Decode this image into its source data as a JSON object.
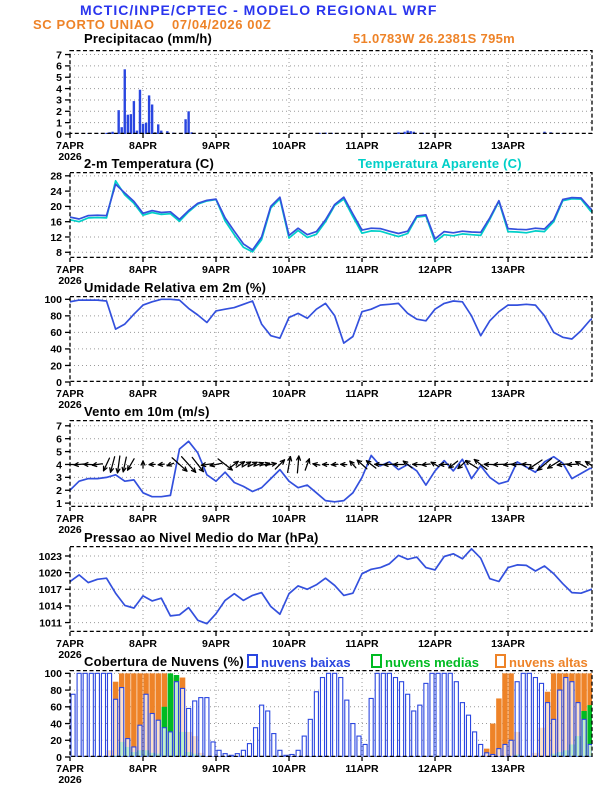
{
  "header": {
    "title": "MCTIC/INPE/CPTEC - MODELO REGIONAL WRF",
    "station": "SC PORTO UNIAO",
    "run": "07/04/2026 00Z",
    "location": "51.0783W 26.2381S 795m"
  },
  "colors": {
    "header_blue": "#2a35ee",
    "orange": "#ee8328",
    "line_blue": "#3350dd",
    "cyan": "#00cfc8",
    "green": "#00bb22",
    "bar_blue": "#2a46e0"
  },
  "x_axis": {
    "labels": [
      "7APR",
      "8APR",
      "9APR",
      "10APR",
      "11APR",
      "12APR",
      "13APR"
    ],
    "year": "2026",
    "hours_max": 171.6
  },
  "chart_data": [
    {
      "type": "bar",
      "title": "Precipitacao (mm/h)",
      "ylabel": "",
      "xlabel": "",
      "ylim": [
        0,
        7.4
      ],
      "yticks": [
        0,
        1,
        2,
        3,
        4,
        5,
        6,
        7
      ],
      "bars": [
        [
          6,
          0.05
        ],
        [
          9,
          0.06
        ],
        [
          12,
          0.1
        ],
        [
          13,
          0.15
        ],
        [
          14,
          0.2
        ],
        [
          16,
          2.1
        ],
        [
          17,
          0.6
        ],
        [
          18,
          5.7
        ],
        [
          19,
          1.7
        ],
        [
          20,
          1.75
        ],
        [
          21,
          2.9
        ],
        [
          22,
          0.3
        ],
        [
          23,
          3.9
        ],
        [
          24,
          0.9
        ],
        [
          25,
          1.0
        ],
        [
          26,
          3.4
        ],
        [
          27,
          2.6
        ],
        [
          28,
          0.15
        ],
        [
          29,
          0.85
        ],
        [
          30,
          0.3
        ],
        [
          32,
          0.25
        ],
        [
          34,
          0.12
        ],
        [
          38,
          1.3
        ],
        [
          39,
          2.0
        ],
        [
          40,
          0.15
        ],
        [
          82,
          0.1
        ],
        [
          84,
          0.12
        ],
        [
          86,
          0.1
        ],
        [
          108,
          0.15
        ],
        [
          110,
          0.2
        ],
        [
          111,
          0.3
        ],
        [
          112,
          0.25
        ],
        [
          113,
          0.2
        ],
        [
          116,
          0.1
        ],
        [
          120,
          0.08
        ],
        [
          156,
          0.2
        ],
        [
          158,
          0.15
        ],
        [
          162,
          0.06
        ]
      ]
    },
    {
      "type": "line",
      "title": "2-m Temperatura (C)",
      "ylim": [
        6.5,
        29
      ],
      "yticks": [
        8,
        12,
        16,
        20,
        24,
        28
      ],
      "interval_hours": 3,
      "series": [
        {
          "name": "2-m Temperatura (C)",
          "color": "blue",
          "values": [
            17.2,
            16.7,
            17.6,
            17.7,
            17.6,
            25.8,
            23.5,
            21.3,
            18.2,
            18.9,
            18.4,
            18.6,
            16.6,
            18.9,
            20.8,
            21.6,
            21.9,
            17.0,
            13.5,
            10.2,
            8.6,
            12.0,
            20.0,
            22.4,
            12.4,
            14.3,
            12.6,
            13.4,
            16.5,
            20.5,
            22.4,
            18.0,
            13.8,
            14.3,
            14.2,
            13.5,
            12.9,
            13.5,
            17.5,
            17.8,
            11.5,
            13.4,
            13.1,
            13.5,
            13.3,
            13.2,
            17.0,
            21.5,
            14.2,
            14.0,
            13.9,
            14.3,
            14.1,
            16.5,
            21.8,
            22.3,
            22.2,
            19.5,
            17.4
          ]
        },
        {
          "name": "Temperatura Aparente (C)",
          "color": "cyan",
          "values": [
            16.5,
            16.0,
            17.0,
            17.1,
            17.0,
            26.7,
            23.0,
            20.8,
            17.7,
            18.4,
            17.9,
            18.1,
            16.1,
            18.6,
            20.6,
            21.4,
            21.8,
            16.2,
            12.6,
            9.3,
            8.1,
            11.3,
            19.6,
            22.0,
            11.7,
            13.7,
            11.9,
            12.7,
            16.0,
            20.2,
            21.9,
            17.3,
            13.0,
            13.6,
            13.5,
            12.8,
            12.1,
            12.9,
            17.2,
            17.5,
            10.7,
            12.6,
            12.3,
            12.8,
            12.6,
            12.4,
            16.6,
            21.3,
            13.4,
            13.3,
            13.1,
            13.6,
            13.4,
            16.0,
            21.5,
            22.0,
            21.9,
            18.9,
            16.8
          ]
        }
      ]
    },
    {
      "type": "line",
      "title": "Umidade Relativa em 2m (%)",
      "ylim": [
        0,
        104
      ],
      "yticks": [
        0,
        20,
        40,
        60,
        80,
        100
      ],
      "interval_hours": 3,
      "series": [
        {
          "name": "Umidade Relativa em 2m (%)",
          "color": "blue",
          "values": [
            97,
            99,
            99,
            99,
            98,
            64,
            70,
            82,
            93,
            97,
            100,
            100,
            99,
            89,
            81,
            72,
            86,
            88,
            90,
            94,
            98,
            70,
            56,
            53,
            78,
            83,
            77,
            88,
            95,
            80,
            47,
            55,
            85,
            88,
            93,
            94,
            95,
            83,
            76,
            74,
            88,
            95,
            98,
            97,
            80,
            56,
            74,
            85,
            93,
            93,
            94,
            93,
            80,
            60,
            54,
            52,
            62,
            75,
            82
          ]
        }
      ]
    },
    {
      "type": "wind",
      "title": "Vento em 10m (m/s)",
      "ylim": [
        0.7,
        7.45
      ],
      "yticks": [
        1,
        2,
        3,
        4,
        5,
        6,
        7
      ],
      "interval_hours": 3,
      "arrow_base_value": 4,
      "series": [
        {
          "name": "Vento em 10m (m/s)",
          "color": "blue",
          "values": [
            2.0,
            2.7,
            2.9,
            2.9,
            3.0,
            3.2,
            2.7,
            2.8,
            1.8,
            1.5,
            1.5,
            1.6,
            5.2,
            5.8,
            4.9,
            3.2,
            2.7,
            3.4,
            2.6,
            2.3,
            1.9,
            2.2,
            2.9,
            3.6,
            2.7,
            2.2,
            2.4,
            1.8,
            1.2,
            1.1,
            1.2,
            1.8,
            3.0,
            4.7,
            3.9,
            4.2,
            3.6,
            4.0,
            3.5,
            2.4,
            3.5,
            4.3,
            3.5,
            4.4,
            2.9,
            3.9,
            3.0,
            2.5,
            2.7,
            4.2,
            3.8,
            3.4,
            4.2,
            4.6,
            4.1,
            2.9,
            3.3,
            3.7,
            3.6
          ]
        }
      ],
      "arrows": [
        [
          0,
          180,
          9
        ],
        [
          3,
          185,
          10
        ],
        [
          6,
          178,
          9
        ],
        [
          9,
          188,
          10
        ],
        [
          12,
          245,
          14
        ],
        [
          14,
          255,
          16
        ],
        [
          16,
          262,
          17
        ],
        [
          18,
          258,
          15
        ],
        [
          20,
          240,
          13
        ],
        [
          24,
          90,
          7
        ],
        [
          27,
          182,
          6
        ],
        [
          30,
          186,
          6
        ],
        [
          33,
          200,
          7
        ],
        [
          36,
          -42,
          20
        ],
        [
          39,
          -48,
          21
        ],
        [
          42,
          -52,
          18
        ],
        [
          45,
          188,
          11
        ],
        [
          48,
          192,
          12
        ],
        [
          51,
          -38,
          18
        ],
        [
          54,
          38,
          10
        ],
        [
          56,
          34,
          10
        ],
        [
          58,
          30,
          10
        ],
        [
          60,
          26,
          10
        ],
        [
          62,
          20,
          10
        ],
        [
          64,
          14,
          10
        ],
        [
          66,
          10,
          11
        ],
        [
          69,
          45,
          13
        ],
        [
          72,
          80,
          16
        ],
        [
          75,
          85,
          17
        ],
        [
          78,
          70,
          12
        ],
        [
          81,
          170,
          7
        ],
        [
          84,
          180,
          6
        ],
        [
          87,
          185,
          6
        ],
        [
          90,
          178,
          6
        ],
        [
          93,
          132,
          9
        ],
        [
          96,
          138,
          13
        ],
        [
          99,
          142,
          12
        ],
        [
          102,
          178,
          11
        ],
        [
          105,
          183,
          11
        ],
        [
          108,
          180,
          10
        ],
        [
          111,
          142,
          11
        ],
        [
          114,
          178,
          8
        ],
        [
          117,
          186,
          8
        ],
        [
          120,
          150,
          9
        ],
        [
          123,
          182,
          9
        ],
        [
          126,
          218,
          11
        ],
        [
          129,
          222,
          12
        ],
        [
          132,
          148,
          14
        ],
        [
          135,
          142,
          16
        ],
        [
          138,
          178,
          11
        ],
        [
          141,
          182,
          11
        ],
        [
          144,
          186,
          9
        ],
        [
          147,
          180,
          11
        ],
        [
          150,
          176,
          9
        ],
        [
          153,
          214,
          16
        ],
        [
          156,
          220,
          18
        ],
        [
          159,
          212,
          14
        ],
        [
          162,
          186,
          11
        ],
        [
          165,
          182,
          9
        ],
        [
          168,
          152,
          12
        ],
        [
          171,
          148,
          11
        ]
      ]
    },
    {
      "type": "line",
      "title": "Pressao ao Nivel Medio do Mar (hPa)",
      "ylim": [
        1009.3,
        1024.8
      ],
      "yticks": [
        1011,
        1014,
        1017,
        1020,
        1023
      ],
      "interval_hours": 3,
      "series": [
        {
          "name": "Pressao ao Nivel Medio do Mar (hPa)",
          "color": "blue",
          "values": [
            1018.4,
            1019.6,
            1018.2,
            1018.8,
            1019.0,
            1016.3,
            1014.1,
            1013.6,
            1015.8,
            1014.9,
            1015.4,
            1012.2,
            1012.4,
            1013.7,
            1011.4,
            1010.8,
            1012.6,
            1015.0,
            1016.2,
            1015.0,
            1015.9,
            1016.4,
            1013.9,
            1012.5,
            1016.2,
            1017.6,
            1017.0,
            1017.8,
            1019.0,
            1017.7,
            1015.9,
            1016.3,
            1019.8,
            1020.6,
            1020.9,
            1021.6,
            1023.1,
            1022.4,
            1022.8,
            1020.9,
            1020.5,
            1022.9,
            1023.4,
            1022.5,
            1024.3,
            1022.6,
            1018.9,
            1018.4,
            1020.9,
            1021.4,
            1021.3,
            1020.3,
            1021.2,
            1019.8,
            1018.0,
            1016.4,
            1016.3,
            1016.9,
            1017.4
          ]
        }
      ]
    },
    {
      "type": "cloud",
      "title": "Cobertura de Nuvens (%)",
      "ylim": [
        0,
        104
      ],
      "yticks": [
        0,
        20,
        40,
        60,
        80,
        100
      ],
      "interval_hours": 2,
      "legend": [
        {
          "label": "nuvens baixas",
          "color": "bar_blue"
        },
        {
          "label": "nuvens medias",
          "color": "green"
        },
        {
          "label": "nuvens altas",
          "color": "orange"
        }
      ],
      "low": [
        75,
        100,
        100,
        100,
        100,
        100,
        100,
        69,
        83,
        22,
        12,
        38,
        75,
        52,
        44,
        35,
        30,
        90,
        82,
        58,
        67,
        71,
        71,
        18,
        8,
        4,
        2,
        4,
        8,
        16,
        35,
        62,
        55,
        28,
        8,
        2,
        3,
        8,
        25,
        45,
        78,
        95,
        100,
        100,
        95,
        68,
        40,
        25,
        15,
        70,
        100,
        100,
        100,
        95,
        90,
        75,
        55,
        62,
        88,
        100,
        100,
        100,
        100,
        90,
        65,
        50,
        30,
        15,
        5,
        3,
        10,
        15,
        20,
        90,
        100,
        100,
        95,
        88,
        65,
        45,
        80,
        95,
        90,
        65,
        45,
        15
      ],
      "mid": [
        0,
        0,
        0,
        0,
        0,
        0,
        0,
        2,
        18,
        12,
        6,
        8,
        8,
        5,
        4,
        60,
        100,
        98,
        30,
        6,
        4,
        2,
        0,
        0,
        0,
        0,
        0,
        0,
        0,
        0,
        0,
        0,
        0,
        0,
        0,
        0,
        0,
        0,
        0,
        0,
        0,
        0,
        0,
        0,
        0,
        0,
        0,
        0,
        0,
        0,
        0,
        0,
        0,
        0,
        0,
        0,
        0,
        0,
        0,
        0,
        0,
        0,
        0,
        0,
        0,
        0,
        0,
        0,
        0,
        0,
        0,
        0,
        0,
        3,
        0,
        0,
        0,
        0,
        0,
        4,
        6,
        8,
        15,
        25,
        55,
        62
      ],
      "high": [
        0,
        0,
        0,
        0,
        0,
        0,
        8,
        90,
        100,
        100,
        100,
        100,
        100,
        100,
        100,
        100,
        95,
        95,
        95,
        30,
        25,
        5,
        0,
        0,
        0,
        0,
        0,
        0,
        0,
        0,
        0,
        0,
        0,
        0,
        0,
        0,
        0,
        0,
        0,
        0,
        0,
        0,
        0,
        0,
        0,
        0,
        0,
        0,
        0,
        0,
        0,
        0,
        0,
        0,
        0,
        0,
        0,
        0,
        0,
        0,
        0,
        0,
        0,
        0,
        0,
        0,
        0,
        0,
        10,
        40,
        70,
        100,
        100,
        30,
        0,
        0,
        5,
        35,
        78,
        100,
        100,
        100,
        100,
        100,
        100,
        100
      ]
    }
  ]
}
